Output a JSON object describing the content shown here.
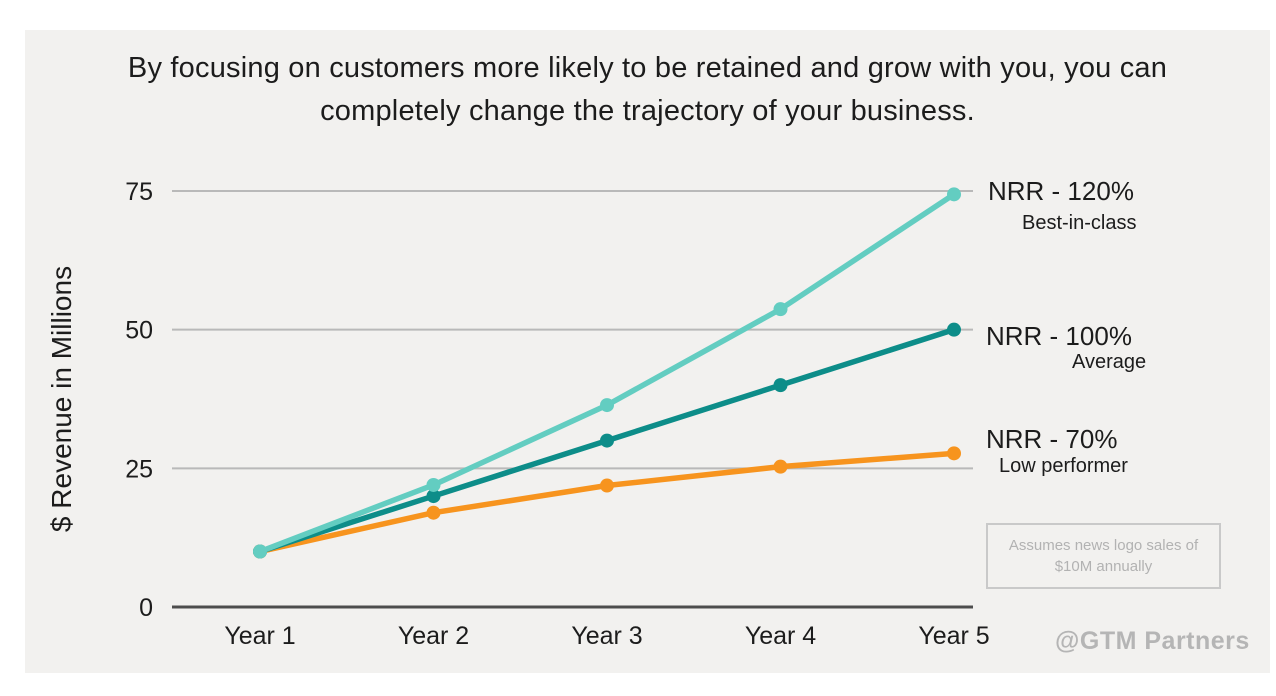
{
  "title": "By focusing on customers more likely to be retained and grow with you, you can completely change the trajectory of your business.",
  "note": {
    "text": "Assumes news logo sales of $10M annually"
  },
  "watermark": "@GTM Partners",
  "colors": {
    "card_bg": "#f2f1ef",
    "text": "#1c1c1c",
    "muted": "#b2b2b2"
  },
  "chart_data": {
    "type": "line",
    "x": [
      "Year 1",
      "Year 2",
      "Year 3",
      "Year 4",
      "Year 5"
    ],
    "ylabel": "$ Revenue in Millions",
    "yticks": [
      0,
      25,
      50,
      75
    ],
    "ylim": [
      0,
      75
    ],
    "grid": true,
    "grid_color": "#b9b9b9",
    "axis_color": "#4d4d4d",
    "legend_position": "right",
    "series": [
      {
        "name": "NRR - 120%",
        "sublabel": "Best-in-class",
        "color": "#63cdc1",
        "values": [
          10,
          22,
          36.4,
          53.7,
          74.4
        ]
      },
      {
        "name": "NRR - 100%",
        "sublabel": "Average",
        "color": "#0d8d89",
        "values": [
          10,
          20,
          30,
          40,
          50
        ]
      },
      {
        "name": "NRR - 70%",
        "sublabel": "Low performer",
        "color": "#f7941e",
        "values": [
          10,
          17,
          21.9,
          25.3,
          27.7
        ]
      }
    ]
  }
}
